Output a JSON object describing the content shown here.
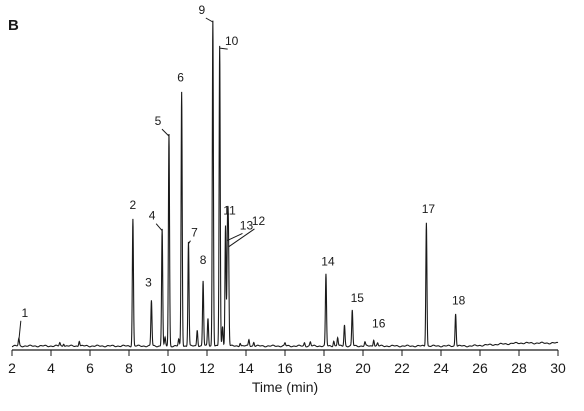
{
  "panel_label": "B",
  "chart_data": {
    "type": "line",
    "title": "",
    "xlabel": "Time (min)",
    "ylabel": "",
    "xlim": [
      2,
      30
    ],
    "ylim": [
      0,
      100
    ],
    "x_ticks": [
      2,
      4,
      6,
      8,
      10,
      12,
      14,
      16,
      18,
      20,
      22,
      24,
      26,
      28,
      30
    ],
    "grid": false,
    "legend": "none",
    "peaks": [
      {
        "label": "1",
        "rt": 2.35,
        "height": 2.2
      },
      {
        "label": "2",
        "rt": 8.2,
        "height": 39.0
      },
      {
        "label": "3",
        "rt": 9.15,
        "height": 14.0
      },
      {
        "label": "4",
        "rt": 9.7,
        "height": 36.0
      },
      {
        "label": "5",
        "rt": 10.05,
        "height": 65.0
      },
      {
        "label": "6",
        "rt": 10.7,
        "height": 78.0
      },
      {
        "label": "7",
        "rt": 11.05,
        "height": 32.0
      },
      {
        "label": "8",
        "rt": 11.8,
        "height": 20.0
      },
      {
        "label": "9",
        "rt": 12.3,
        "height": 100.0
      },
      {
        "label": "10",
        "rt": 12.65,
        "height": 92.0
      },
      {
        "label": "11",
        "rt": 12.95,
        "height": 37.0
      },
      {
        "label": "12",
        "rt": 13.1,
        "height": 31.0
      },
      {
        "label": "13",
        "rt": 13.05,
        "height": 33.0
      },
      {
        "label": "14",
        "rt": 18.1,
        "height": 22.0
      },
      {
        "label": "15",
        "rt": 19.45,
        "height": 11.0
      },
      {
        "label": "16",
        "rt": 20.55,
        "height": 2.0
      },
      {
        "label": "17",
        "rt": 23.25,
        "height": 38.0
      },
      {
        "label": "18",
        "rt": 24.75,
        "height": 10.0
      }
    ],
    "minor_peaks": [
      {
        "rt": 4.45,
        "height": 1.0
      },
      {
        "rt": 4.65,
        "height": 0.8
      },
      {
        "rt": 5.45,
        "height": 1.6
      },
      {
        "rt": 9.85,
        "height": 2.5
      },
      {
        "rt": 10.55,
        "height": 2.0
      },
      {
        "rt": 11.5,
        "height": 5.0
      },
      {
        "rt": 12.05,
        "height": 8.5
      },
      {
        "rt": 12.8,
        "height": 6.0
      },
      {
        "rt": 13.7,
        "height": 1.0
      },
      {
        "rt": 14.15,
        "height": 2.0
      },
      {
        "rt": 14.4,
        "height": 1.2
      },
      {
        "rt": 16.0,
        "height": 0.9
      },
      {
        "rt": 17.0,
        "height": 1.0
      },
      {
        "rt": 17.3,
        "height": 1.2
      },
      {
        "rt": 18.5,
        "height": 1.6
      },
      {
        "rt": 18.7,
        "height": 2.6
      },
      {
        "rt": 19.05,
        "height": 6.5
      },
      {
        "rt": 20.1,
        "height": 1.2
      },
      {
        "rt": 20.75,
        "height": 0.9
      }
    ]
  }
}
